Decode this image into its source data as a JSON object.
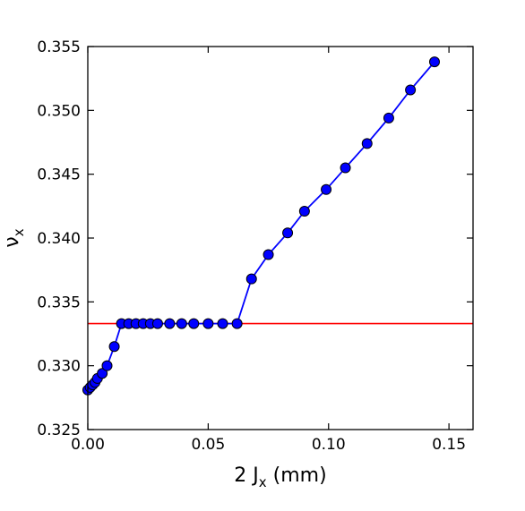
{
  "chart_data": {
    "type": "line",
    "title": "",
    "xlabel_main": "2 J",
    "xlabel_sub": "x",
    "xlabel_unit": "(mm)",
    "ylabel_main": "ν",
    "ylabel_sub": "x",
    "xlim": [
      0.0,
      0.16
    ],
    "ylim": [
      0.325,
      0.355
    ],
    "xticks": [
      0.0,
      0.05,
      0.1,
      0.15
    ],
    "xtick_labels": [
      "0.00",
      "0.05",
      "0.10",
      "0.15"
    ],
    "yticks": [
      0.325,
      0.33,
      0.335,
      0.34,
      0.345,
      0.35,
      0.355
    ],
    "ytick_labels": [
      "0.325",
      "0.330",
      "0.335",
      "0.340",
      "0.345",
      "0.350",
      "0.355"
    ],
    "grid": false,
    "series": [
      {
        "color": "#0000ff",
        "marker": "circle",
        "x": [
          0.0,
          0.001,
          0.002,
          0.003,
          0.004,
          0.006,
          0.008,
          0.011,
          0.014,
          0.017,
          0.02,
          0.023,
          0.026,
          0.029,
          0.034,
          0.039,
          0.044,
          0.05,
          0.056,
          0.062,
          0.068,
          0.075,
          0.083,
          0.09,
          0.099,
          0.107,
          0.116,
          0.125,
          0.134,
          0.144
        ],
        "y": [
          0.3281,
          0.3283,
          0.3285,
          0.3287,
          0.329,
          0.3294,
          0.33,
          0.3315,
          0.3333,
          0.3333,
          0.3333,
          0.3333,
          0.3333,
          0.3333,
          0.3333,
          0.3333,
          0.3333,
          0.3333,
          0.3333,
          0.3333,
          0.3368,
          0.3387,
          0.3404,
          0.3421,
          0.3438,
          0.3455,
          0.3474,
          0.3494,
          0.3516,
          0.3538
        ]
      }
    ],
    "reference_line": {
      "y": 0.3333,
      "color": "#ff0000"
    }
  }
}
